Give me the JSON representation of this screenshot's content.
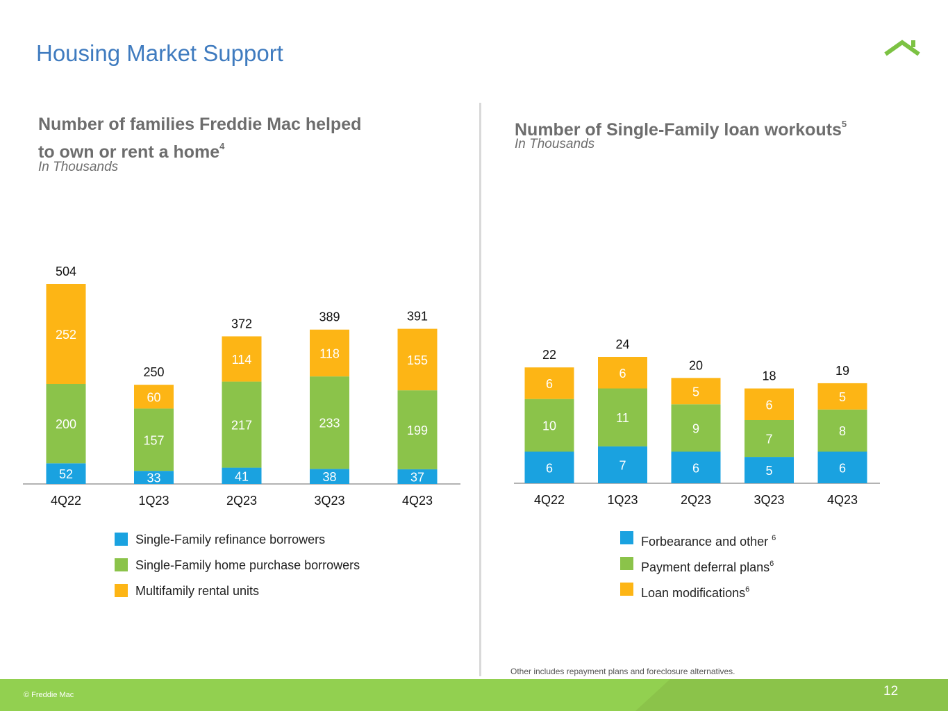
{
  "page": {
    "title": "Housing Market Support",
    "footnote": "Other includes repayment plans and foreclosure alternatives.",
    "copyright": "© Freddie Mac",
    "page_number": "12"
  },
  "colors": {
    "blue": "#1aa2e0",
    "green": "#8bc34a",
    "orange": "#fdb515",
    "title_blue": "#3f7bbf",
    "footer_green": "#92d050"
  },
  "chart_data": [
    {
      "type": "bar",
      "stacked": true,
      "title_line1": "Number of families Freddie Mac helped",
      "title_line2": "to own or rent a home",
      "title_sup": "4",
      "subtitle": "In Thousands",
      "categories": [
        "4Q22",
        "1Q23",
        "2Q23",
        "3Q23",
        "4Q23"
      ],
      "series": [
        {
          "name": "Single-Family refinance borrowers",
          "sup": "",
          "color": "#1aa2e0",
          "values": [
            52,
            33,
            41,
            38,
            37
          ]
        },
        {
          "name": "Single-Family home purchase borrowers",
          "sup": "",
          "color": "#8bc34a",
          "values": [
            200,
            157,
            217,
            233,
            199
          ]
        },
        {
          "name": "Multifamily rental units",
          "sup": "",
          "color": "#fdb515",
          "values": [
            252,
            60,
            114,
            118,
            155
          ]
        }
      ],
      "totals": [
        504,
        250,
        372,
        389,
        391
      ],
      "ylim": [
        0,
        504
      ],
      "unit": "thousands"
    },
    {
      "type": "bar",
      "stacked": true,
      "title_line1": "Number of Single-Family loan workouts",
      "title_line2": "",
      "title_sup": "5",
      "subtitle": "In Thousands",
      "categories": [
        "4Q22",
        "1Q23",
        "2Q23",
        "3Q23",
        "4Q23"
      ],
      "series": [
        {
          "name": "Forbearance and other ",
          "sup": "6",
          "color": "#1aa2e0",
          "values": [
            6,
            7,
            6,
            5,
            6
          ]
        },
        {
          "name": "Payment deferral plans",
          "sup": "6",
          "color": "#8bc34a",
          "values": [
            10,
            11,
            9,
            7,
            8
          ]
        },
        {
          "name": "Loan modifications",
          "sup": "6",
          "color": "#fdb515",
          "values": [
            6,
            6,
            5,
            6,
            5
          ]
        }
      ],
      "totals": [
        22,
        24,
        20,
        18,
        19
      ],
      "ylim": [
        0,
        24
      ],
      "unit": "thousands"
    }
  ]
}
